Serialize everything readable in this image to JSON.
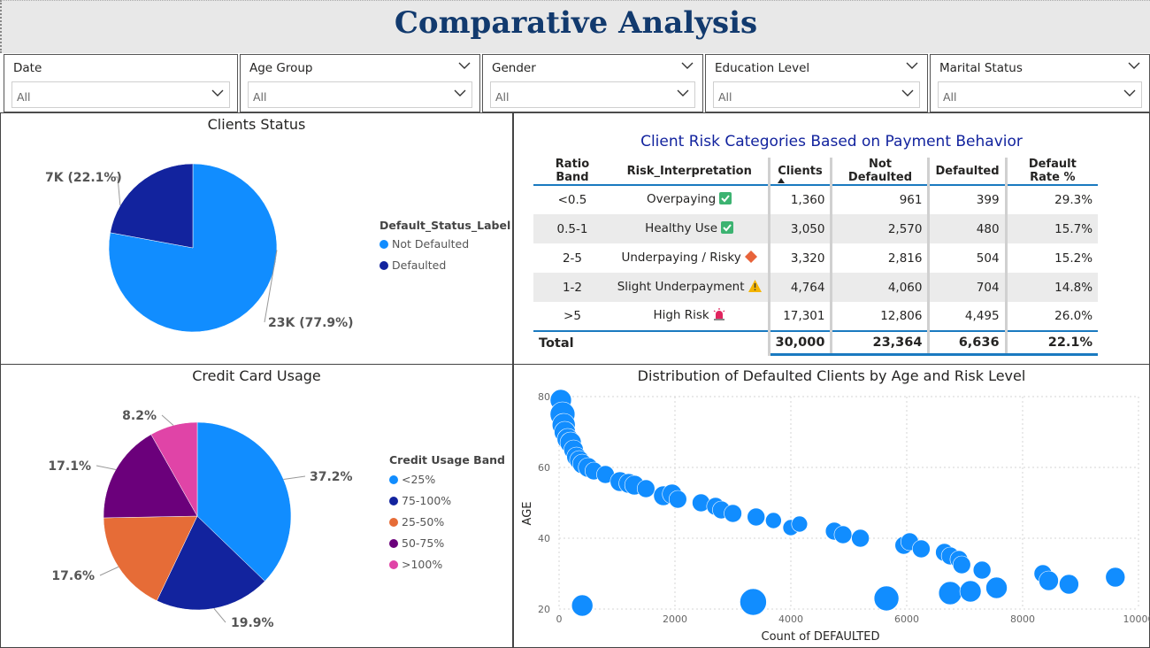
{
  "header": {
    "title": "Comparative Analysis"
  },
  "filters": [
    {
      "label": "Date",
      "value": "All"
    },
    {
      "label": "Age Group",
      "value": "All"
    },
    {
      "label": "Gender",
      "value": "All"
    },
    {
      "label": "Education Level",
      "value": "All"
    },
    {
      "label": "Marital Status",
      "value": "All"
    }
  ],
  "clients_status": {
    "title": "Clients Status",
    "legend_title": "Default_Status_Label",
    "colors": {
      "not_defaulted": "#118dff",
      "defaulted": "#12239e"
    },
    "chart_data": {
      "type": "pie",
      "categories": [
        "Not Defaulted",
        "Defaulted"
      ],
      "values": [
        77.9,
        22.1
      ],
      "data_labels": [
        "23K (77.9%)",
        "7K (22.1%)"
      ]
    }
  },
  "risk_table": {
    "title": "Client Risk Categories Based on Payment Behavior",
    "columns": [
      "Ratio Band",
      "Risk_Interpretation",
      "Clients",
      "Not Defaulted",
      "Defaulted",
      "Default Rate %"
    ],
    "rows": [
      {
        "band": "<0.5",
        "interp": "Overpaying",
        "icon": "check-icon",
        "clients": "1,360",
        "not_defaulted": "961",
        "defaulted": "399",
        "rate": "29.3%"
      },
      {
        "band": "0.5-1",
        "interp": "Healthy Use",
        "icon": "check-icon",
        "clients": "3,050",
        "not_defaulted": "2,570",
        "defaulted": "480",
        "rate": "15.7%"
      },
      {
        "band": "2-5",
        "interp": "Underpaying / Risky",
        "icon": "diamond-icon",
        "clients": "3,320",
        "not_defaulted": "2,816",
        "defaulted": "504",
        "rate": "15.2%"
      },
      {
        "band": "1-2",
        "interp": "Slight Underpayment",
        "icon": "warning-icon",
        "clients": "4,764",
        "not_defaulted": "4,060",
        "defaulted": "704",
        "rate": "14.8%"
      },
      {
        "band": ">5",
        "interp": "High Risk",
        "icon": "siren-icon",
        "clients": "17,301",
        "not_defaulted": "12,806",
        "defaulted": "4,495",
        "rate": "26.0%"
      }
    ],
    "total": {
      "label": "Total",
      "clients": "30,000",
      "not_defaulted": "23,364",
      "defaulted": "6,636",
      "rate": "22.1%"
    }
  },
  "credit_usage": {
    "title": "Credit Card Usage",
    "legend_title": "Credit Usage Band",
    "colors": [
      "#118dff",
      "#12239e",
      "#e66c37",
      "#6b007b",
      "#e044a7"
    ],
    "chart_data": {
      "type": "pie",
      "categories": [
        "<25%",
        "75-100%",
        "25-50%",
        "50-75%",
        ">100%"
      ],
      "values": [
        37.2,
        19.9,
        17.6,
        17.1,
        8.2
      ],
      "data_labels": [
        "37.2%",
        "19.9%",
        "17.6%",
        "17.1%",
        "8.2%"
      ]
    }
  },
  "scatter": {
    "title": "Distribution of Defaulted Clients by Age and Risk Level",
    "color": "#118dff",
    "chart_data": {
      "type": "scatter",
      "xlabel": "Count of DEFAULTED",
      "ylabel": "AGE",
      "xlim": [
        0,
        10000
      ],
      "ylim": [
        20,
        80
      ],
      "xticks": [
        "0",
        "2000",
        "4000",
        "6000",
        "8000",
        "10000"
      ],
      "yticks": [
        "20",
        "40",
        "60",
        "80"
      ],
      "points": [
        [
          30,
          79
        ],
        [
          60,
          75
        ],
        [
          80,
          72
        ],
        [
          100,
          70
        ],
        [
          150,
          68
        ],
        [
          200,
          67
        ],
        [
          250,
          65
        ],
        [
          300,
          63
        ],
        [
          350,
          62
        ],
        [
          400,
          61
        ],
        [
          500,
          60
        ],
        [
          600,
          59
        ],
        [
          800,
          58
        ],
        [
          1050,
          56
        ],
        [
          1200,
          55.5
        ],
        [
          1300,
          55
        ],
        [
          1500,
          54
        ],
        [
          1800,
          52
        ],
        [
          1950,
          52.5
        ],
        [
          2050,
          51
        ],
        [
          2450,
          50
        ],
        [
          2700,
          49
        ],
        [
          2800,
          48
        ],
        [
          3000,
          47
        ],
        [
          3400,
          46
        ],
        [
          3700,
          45
        ],
        [
          4000,
          43
        ],
        [
          4150,
          44
        ],
        [
          4750,
          42
        ],
        [
          4900,
          41
        ],
        [
          5200,
          40
        ],
        [
          5950,
          38
        ],
        [
          6050,
          39
        ],
        [
          6250,
          37
        ],
        [
          6650,
          36
        ],
        [
          6750,
          35
        ],
        [
          6900,
          34
        ],
        [
          6950,
          32.5
        ],
        [
          7300,
          31
        ],
        [
          8350,
          30
        ],
        [
          8450,
          28
        ],
        [
          8800,
          27
        ],
        [
          9600,
          29
        ],
        [
          400,
          21
        ],
        [
          3350,
          22
        ],
        [
          5650,
          23
        ],
        [
          6750,
          24.5
        ],
        [
          7100,
          25
        ],
        [
          7550,
          26
        ]
      ],
      "sizes": [
        12,
        14,
        13,
        12,
        12,
        12,
        11,
        11,
        11,
        11,
        11,
        10,
        10,
        11,
        11,
        11,
        10,
        11,
        11,
        10,
        10,
        10,
        10,
        10,
        10,
        9,
        9,
        9,
        10,
        10,
        10,
        10,
        10,
        10,
        10,
        10,
        10,
        10,
        10,
        10,
        11,
        11,
        11,
        12,
        15,
        14,
        13,
        12,
        12
      ]
    }
  }
}
